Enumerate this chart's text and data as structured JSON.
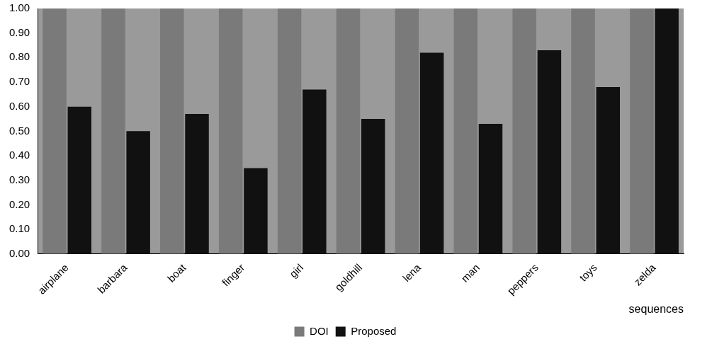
{
  "chart_data": {
    "type": "bar",
    "xlabel": "sequences",
    "categories": [
      "airplane",
      "barbara",
      "boat",
      "finger",
      "girl",
      "goldhill",
      "lena",
      "man",
      "peppers",
      "toys",
      "zelda"
    ],
    "series": [
      {
        "name": "DOI",
        "color": "#7a7a7a",
        "values": [
          1.0,
          1.0,
          1.0,
          1.0,
          1.0,
          1.0,
          1.0,
          1.0,
          1.0,
          1.0,
          1.0
        ]
      },
      {
        "name": "Proposed",
        "color": "#111111",
        "values": [
          0.6,
          0.5,
          0.57,
          0.35,
          0.67,
          0.55,
          0.82,
          0.53,
          0.83,
          0.68,
          1.0
        ]
      }
    ],
    "ylim": [
      0,
      1
    ],
    "yticks": [
      {
        "value": 0,
        "label": "0.00"
      },
      {
        "value": 0.1,
        "label": "0.10"
      },
      {
        "value": 0.2,
        "label": "0.20"
      },
      {
        "value": 0.3,
        "label": "0.30"
      },
      {
        "value": 0.4,
        "label": "0.40"
      },
      {
        "value": 0.5,
        "label": "0.50"
      },
      {
        "value": 0.6,
        "label": "0.60"
      },
      {
        "value": 0.7,
        "label": "0.70"
      },
      {
        "value": 0.8,
        "label": "0.80"
      },
      {
        "value": 0.9,
        "label": "0.90"
      },
      {
        "value": 1,
        "label": "1.00"
      }
    ],
    "grid": false,
    "legend": "bottom"
  }
}
